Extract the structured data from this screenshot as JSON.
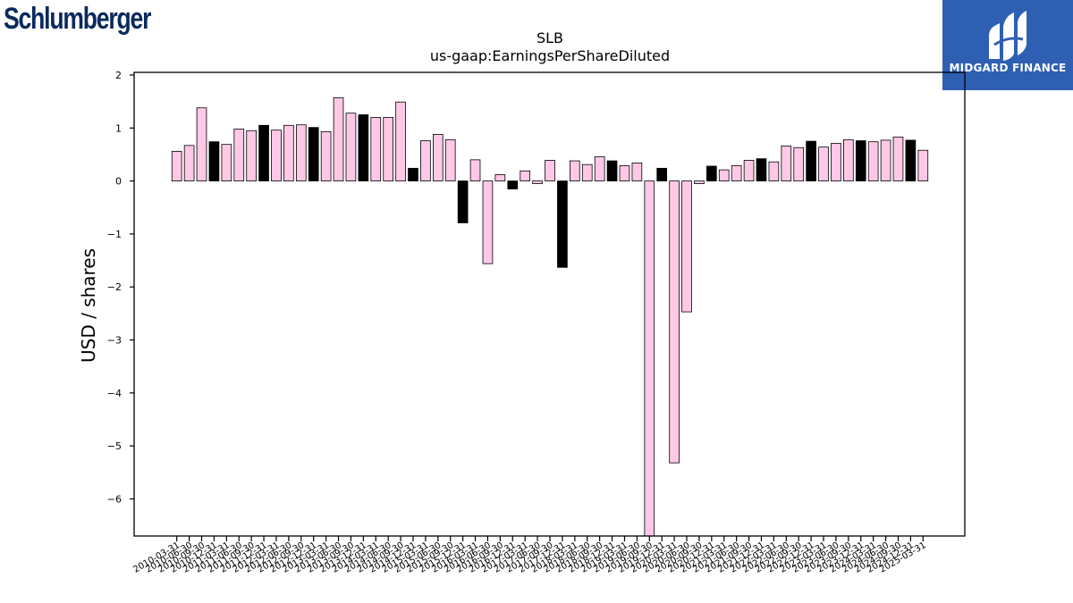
{
  "branding": {
    "company_logo_text": "Schlumberger",
    "badge_text": "MIDGARD FINANCE",
    "badge_color": "#2f5fb3"
  },
  "chart_data": {
    "type": "bar",
    "title": "SLB",
    "subtitle": "us-gaap:EarningsPerShareDiluted",
    "xlabel": "",
    "ylabel": "USD / shares",
    "ylim": [
      -6.7,
      2.05
    ],
    "yticks": [
      2,
      1,
      0,
      -1,
      -2,
      -3,
      -4,
      -5,
      -6
    ],
    "ytick_labels": [
      "2",
      "1",
      "0",
      "−1",
      "−2",
      "−3",
      "−4",
      "−5",
      "−6"
    ],
    "grid": false,
    "colors": {
      "quarterly": "#ffc8e6",
      "annual": "#000000",
      "edge": "#000000"
    },
    "categories": [
      "2010-03-31",
      "2010-06-30",
      "2010-09-30",
      "2010-12-31",
      "2011-03-31",
      "2011-06-30",
      "2011-09-30",
      "2011-12-31",
      "2012-03-31",
      "2012-06-30",
      "2012-09-30",
      "2012-12-31",
      "2013-03-31",
      "2013-06-30",
      "2013-09-30",
      "2013-12-31",
      "2014-03-31",
      "2014-06-30",
      "2014-09-30",
      "2014-12-31",
      "2015-03-31",
      "2015-06-30",
      "2015-09-30",
      "2015-12-31",
      "2016-03-31",
      "2016-06-30",
      "2016-09-30",
      "2016-12-31",
      "2017-03-31",
      "2017-06-30",
      "2017-09-30",
      "2017-12-31",
      "2018-03-31",
      "2018-06-30",
      "2018-09-30",
      "2018-12-31",
      "2019-03-31",
      "2019-06-30",
      "2019-09-30",
      "2019-12-31",
      "2020-03-31",
      "2020-06-30",
      "2020-09-30",
      "2020-12-31",
      "2021-03-31",
      "2021-06-30",
      "2021-09-30",
      "2021-12-31",
      "2022-03-31",
      "2022-06-30",
      "2022-09-30",
      "2022-12-31",
      "2023-03-31",
      "2023-06-30",
      "2023-09-30",
      "2023-12-31",
      "2024-03-31",
      "2024-06-30",
      "2024-09-30",
      "2024-12-31",
      "2025-03-31"
    ],
    "values": [
      0.56,
      0.67,
      1.38,
      0.74,
      0.69,
      0.98,
      0.95,
      1.05,
      0.96,
      1.05,
      1.06,
      1.01,
      0.93,
      1.57,
      1.28,
      1.25,
      1.2,
      1.2,
      1.49,
      0.24,
      0.76,
      0.88,
      0.78,
      -0.79,
      0.4,
      -1.56,
      0.12,
      -0.15,
      0.19,
      -0.05,
      0.39,
      -1.63,
      0.38,
      0.31,
      0.46,
      0.38,
      0.29,
      0.34,
      -6.7,
      0.24,
      -5.32,
      -2.47,
      -0.05,
      0.28,
      0.21,
      0.29,
      0.39,
      0.42,
      0.36,
      0.66,
      0.63,
      0.75,
      0.64,
      0.71,
      0.78,
      0.76,
      0.74,
      0.77,
      0.83,
      0.77,
      0.58
    ],
    "annual": [
      false,
      false,
      false,
      true,
      false,
      false,
      false,
      true,
      false,
      false,
      false,
      true,
      false,
      false,
      false,
      true,
      false,
      false,
      false,
      true,
      false,
      false,
      false,
      true,
      false,
      false,
      false,
      true,
      false,
      false,
      false,
      true,
      false,
      false,
      false,
      true,
      false,
      false,
      false,
      true,
      false,
      false,
      false,
      true,
      false,
      false,
      false,
      true,
      false,
      false,
      false,
      true,
      false,
      false,
      false,
      true,
      false,
      false,
      false,
      true,
      false
    ]
  }
}
